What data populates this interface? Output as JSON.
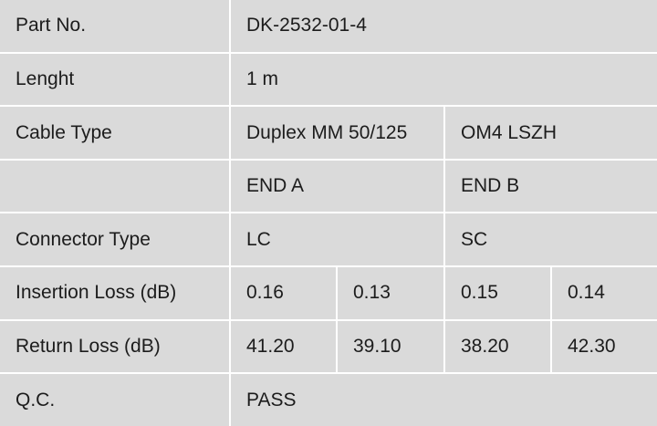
{
  "rows": {
    "part_no": {
      "label": "Part No.",
      "value": "DK-2532-01-4"
    },
    "length": {
      "label": "Lenght",
      "value": "1 m"
    },
    "cable_type": {
      "label": "Cable Type",
      "value_a": "Duplex MM 50/125",
      "value_b": "OM4 LSZH"
    },
    "ends": {
      "label": "",
      "end_a": "END A",
      "end_b": "END B"
    },
    "connector_type": {
      "label": "Connector Type",
      "end_a": "LC",
      "end_b": "SC"
    },
    "insertion_loss": {
      "label": "Insertion Loss (dB)",
      "values": [
        "0.16",
        "0.13",
        "0.15",
        "0.14"
      ]
    },
    "return_loss": {
      "label": "Return Loss (dB)",
      "values": [
        "41.20",
        "39.10",
        "38.20",
        "42.30"
      ]
    },
    "qc": {
      "label": "Q.C.",
      "value": "PASS"
    }
  }
}
